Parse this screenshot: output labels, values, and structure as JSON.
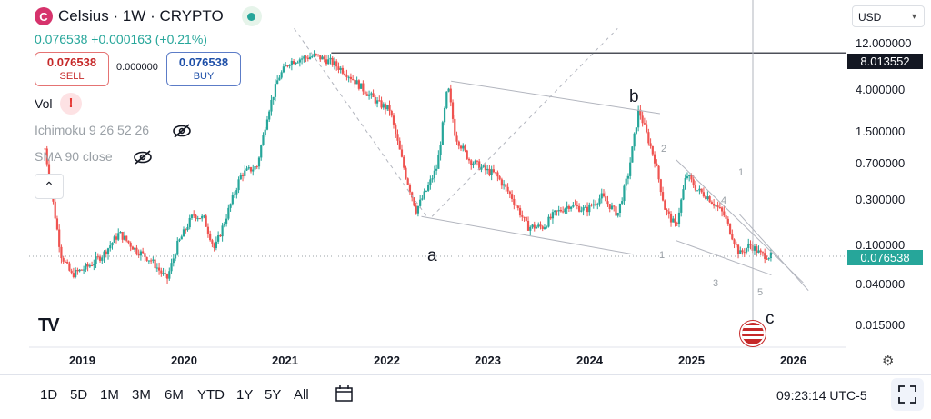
{
  "header": {
    "logo_letter": "C",
    "title": "Celsius · 1W · CRYPTO",
    "price": "0.076538",
    "change": "+0.000163 (+0.21%)"
  },
  "trade": {
    "sell_price": "0.076538",
    "sell_label": "SELL",
    "spread": "0.000000",
    "buy_price": "0.076538",
    "buy_label": "BUY"
  },
  "indicators": {
    "vol": "Vol",
    "warn_glyph": "!",
    "ichimoku": "Ichimoku 9 26 52 26",
    "sma": "SMA 90 close",
    "collapse_glyph": "⌃"
  },
  "currency": "USD",
  "price_axis": [
    "12.000000",
    "4.000000",
    "1.500000",
    "0.700000",
    "0.300000",
    "0.100000",
    "0.040000",
    "0.015000"
  ],
  "price_tags": {
    "horizontal_line": "8.013552",
    "last": "0.076538"
  },
  "time_axis": [
    "2019",
    "2020",
    "2021",
    "2022",
    "2023",
    "2024",
    "2025",
    "2026"
  ],
  "wave_labels": {
    "a": "a",
    "b": "b",
    "c": "c"
  },
  "wave_numbers": [
    "1",
    "2",
    "3",
    "4",
    "5",
    "1"
  ],
  "bottom": {
    "ranges": [
      "1D",
      "5D",
      "1M",
      "3M",
      "6M",
      "YTD",
      "1Y",
      "5Y",
      "All"
    ],
    "clock": "09:23:14 UTC-5"
  },
  "colors": {
    "up": "#26a69a",
    "down": "#ef5350",
    "accent": "#26a69a",
    "line_tag": "#131722"
  },
  "chart_data": {
    "type": "candlestick",
    "symbol": "Celsius",
    "timeframe": "1W",
    "scale": "log",
    "ylim": [
      0.01,
      15
    ],
    "x_range": [
      "2018-09",
      "2026-02"
    ],
    "x_ticks": [
      "2019",
      "2020",
      "2021",
      "2022",
      "2023",
      "2024",
      "2025",
      "2026"
    ],
    "y_ticks": [
      12,
      4,
      1.5,
      0.7,
      0.3,
      0.1,
      0.04,
      0.015
    ],
    "last_price": 0.076538,
    "horizontal_line": 8.013552,
    "x": [
      2018.75,
      2018.9,
      2019.0,
      2019.15,
      2019.3,
      2019.45,
      2019.6,
      2019.75,
      2019.9,
      2020.0,
      2020.15,
      2020.25,
      2020.35,
      2020.5,
      2020.6,
      2020.75,
      2020.85,
      2020.95,
      2021.05,
      2021.15,
      2021.3,
      2021.45,
      2021.6,
      2021.75,
      2021.9,
      2022.0,
      2022.15,
      2022.25,
      2022.35,
      2022.45,
      2022.55,
      2022.62,
      2022.75,
      2022.9,
      2023.0,
      2023.15,
      2023.3,
      2023.45,
      2023.55,
      2023.7,
      2023.85,
      2024.0,
      2024.15,
      2024.25,
      2024.35,
      2024.4,
      2024.5,
      2024.6,
      2024.7,
      2024.8,
      2024.9,
      2025.0,
      2025.15,
      2025.3,
      2025.4,
      2025.5,
      2025.6
    ],
    "y": [
      0.9,
      0.08,
      0.05,
      0.06,
      0.08,
      0.13,
      0.09,
      0.07,
      0.045,
      0.1,
      0.2,
      0.18,
      0.09,
      0.25,
      0.5,
      0.6,
      2.0,
      4.5,
      6.5,
      7.0,
      7.5,
      6.5,
      5.0,
      3.5,
      2.5,
      2.2,
      0.5,
      0.22,
      0.35,
      0.6,
      3.8,
      1.2,
      0.7,
      0.55,
      0.5,
      0.3,
      0.15,
      0.15,
      0.2,
      0.25,
      0.22,
      0.3,
      0.2,
      0.5,
      2.2,
      1.5,
      0.7,
      0.22,
      0.15,
      0.5,
      0.35,
      0.3,
      0.2,
      0.08,
      0.1,
      0.08,
      0.076538
    ]
  }
}
